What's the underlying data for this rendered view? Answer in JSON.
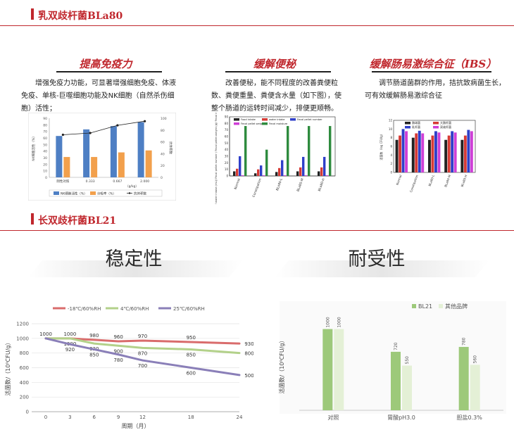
{
  "section1": {
    "title": "乳双歧杆菌BLa80"
  },
  "section2": {
    "title": "长双歧杆菌BL21"
  },
  "col1": {
    "title": "提高免疫力",
    "text": "增强免疫力功能，可显著增强细胞免疫、体液免疫、单核-巨噬细胞功能及NK细胞（自然杀伤细胞）活性；"
  },
  "col2": {
    "title": "缓解便秘",
    "text": "改善便秘，能不同程度的改善粪便粒数、粪便重量、粪便含水量（如下图），使整个肠道的运转时间减少，排便更顺畅。"
  },
  "col3": {
    "title": "缓解肠易激综合征（IBS）",
    "text": "调节肠道菌群的作用，拮抗致病菌生长，可有效缓解肠易激综合征"
  },
  "stability": {
    "title": "稳定性"
  },
  "tolerance": {
    "title": "耐受性"
  },
  "colors": {
    "accent": "#c0272d",
    "dark_line": "#1f1f1f"
  },
  "chart_data": [
    {
      "type": "bar",
      "categories": [
        "阴性对照",
        "0.333",
        "0.667",
        "2.000"
      ],
      "xlabel": "（g/kg）",
      "ylabel": "NK细胞活性（%）",
      "y2label": "抗体积数",
      "ylim": [
        0,
        90
      ],
      "y2lim": [
        0,
        100
      ],
      "series": [
        {
          "name": "NK细胞活性（%）",
          "color": "#4e7fc4",
          "values": [
            63,
            73,
            78,
            84
          ]
        },
        {
          "name": "分吸率（%）",
          "color": "#f2a04c",
          "values": [
            31,
            31,
            38,
            41
          ]
        },
        {
          "name": "抗体积数",
          "color": "#222222",
          "type": "line",
          "axis": "y2",
          "values": [
            72,
            75,
            88,
            95
          ]
        }
      ]
    },
    {
      "type": "bar",
      "categories": [
        "Normal",
        "Constipation",
        "BLa80-L",
        "BLa80-M",
        "BLa80-H"
      ],
      "ylabel": "Feed intake(g)/ water intake (mL)/ Fecal pellet number / Fecal pellet weight (g)/ Fecal moisture(%)",
      "ylim": [
        0,
        90
      ],
      "series": [
        {
          "name": "Food intake",
          "color": "#222222",
          "values": [
            7,
            4,
            6,
            7,
            7
          ]
        },
        {
          "name": "water intake",
          "color": "#d63a35",
          "values": [
            11,
            10,
            12,
            13,
            13
          ]
        },
        {
          "name": "Fecal pellet number",
          "color": "#2f3fc9",
          "values": [
            30,
            16,
            24,
            29,
            29
          ]
        },
        {
          "name": "Fecal pellet weight",
          "color": "#cf3fd6",
          "values": [
            1,
            1,
            1,
            1,
            1
          ]
        },
        {
          "name": "Fecal moisture",
          "color": "#2e8b3e",
          "values": [
            76,
            40,
            76,
            76,
            76
          ]
        }
      ]
    },
    {
      "type": "bar",
      "categories": [
        "Normal",
        "Constipation",
        "BLa80-L",
        "BLa80-M",
        "BLa80-H"
      ],
      "ylabel": "活菌数（log CFU/g）",
      "ylim": [
        0,
        12
      ],
      "series": [
        {
          "name": "肠球菌",
          "color": "#222222",
          "values": [
            7.5,
            8,
            7.5,
            7.5,
            7.5
          ]
        },
        {
          "name": "大肠杆菌",
          "color": "#d63a35",
          "values": [
            8.5,
            9,
            8.5,
            8.5,
            8.5
          ]
        },
        {
          "name": "乳杆菌",
          "color": "#2f3fc9",
          "values": [
            10,
            9.6,
            9.5,
            9.5,
            9.8
          ]
        },
        {
          "name": "双歧杆菌",
          "color": "#cf3fd6",
          "values": [
            9.5,
            9,
            9.2,
            9.2,
            9.5
          ]
        }
      ]
    },
    {
      "type": "line",
      "x": [
        0,
        3,
        6,
        9,
        12,
        18,
        24
      ],
      "xlabel": "周期（月）",
      "ylabel": "活菌数/（10⁹CFU/g）",
      "ylim": [
        0,
        1200
      ],
      "yticks": [
        0,
        200,
        400,
        600,
        800,
        1000,
        1200
      ],
      "series": [
        {
          "name": "-18℃/60%RH",
          "color": "#d96c6c",
          "values": [
            1000,
            1000,
            980,
            960,
            970,
            950,
            930
          ]
        },
        {
          "name": "4℃/60%RH",
          "color": "#b3d18a",
          "values": [
            1000,
            1000,
            930,
            900,
            870,
            850,
            800
          ]
        },
        {
          "name": "25℃/60%RH",
          "color": "#8a7fb8",
          "values": [
            1000,
            920,
            850,
            780,
            700,
            600,
            500
          ]
        }
      ]
    },
    {
      "type": "bar",
      "categories": [
        "对照",
        "胃酸pH3.0",
        "胆盐0.3%"
      ],
      "ylabel": "活菌数/（10⁹CFU/g）",
      "ylim": [
        0,
        1100
      ],
      "series": [
        {
          "name": "BL21",
          "color": "#9dc97a",
          "values": [
            1000,
            720,
            780
          ]
        },
        {
          "name": "其他品牌",
          "color": "#e4f0d6",
          "values": [
            1000,
            550,
            560
          ]
        }
      ]
    }
  ]
}
